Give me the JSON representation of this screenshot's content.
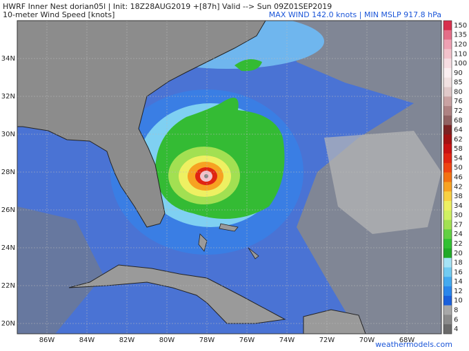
{
  "header": {
    "title": "HWRF Inner Nest  dorian05l | Init: 18Z28AUG2019 +[87h] Valid --> Sun 09Z01SEP2019",
    "subtitle": "10-meter Wind Speed [knots]",
    "stats": "MAX WIND 142.0 knots | MIN MSLP 917.8 hPa"
  },
  "map": {
    "lat_labels": [
      "34N",
      "32N",
      "30N",
      "28N",
      "26N",
      "24N",
      "22N",
      "20N"
    ],
    "lon_labels": [
      "86W",
      "84W",
      "82W",
      "80W",
      "78W",
      "76W",
      "74W",
      "72W",
      "70W",
      "68W"
    ]
  },
  "colorbar": {
    "labels": [
      150,
      135,
      120,
      110,
      100,
      90,
      85,
      80,
      76,
      72,
      68,
      64,
      62,
      58,
      54,
      50,
      46,
      42,
      38,
      34,
      30,
      27,
      24,
      22,
      20,
      18,
      16,
      14,
      12,
      10,
      8,
      6,
      4
    ],
    "colors": [
      "#d8304c",
      "#e46e88",
      "#eea0b2",
      "#f3c2cb",
      "#f7dde2",
      "#fbeff1",
      "#f1e1e1",
      "#e0c9c9",
      "#c9a2a2",
      "#ae8282",
      "#916262",
      "#7c2222",
      "#a31212",
      "#c81212",
      "#e02412",
      "#ee4412",
      "#f27212",
      "#f7a222",
      "#f8d042",
      "#eef062",
      "#cff062",
      "#a2e052",
      "#62d042",
      "#32c032",
      "#22aa28",
      "#a6e4f6",
      "#72ccf2",
      "#44aaf0",
      "#2a86ec",
      "#1a60dc",
      "#a8a8a8",
      "#8a8a8a",
      "#6a6a6a"
    ]
  },
  "watermark": "weathermodels.com"
}
